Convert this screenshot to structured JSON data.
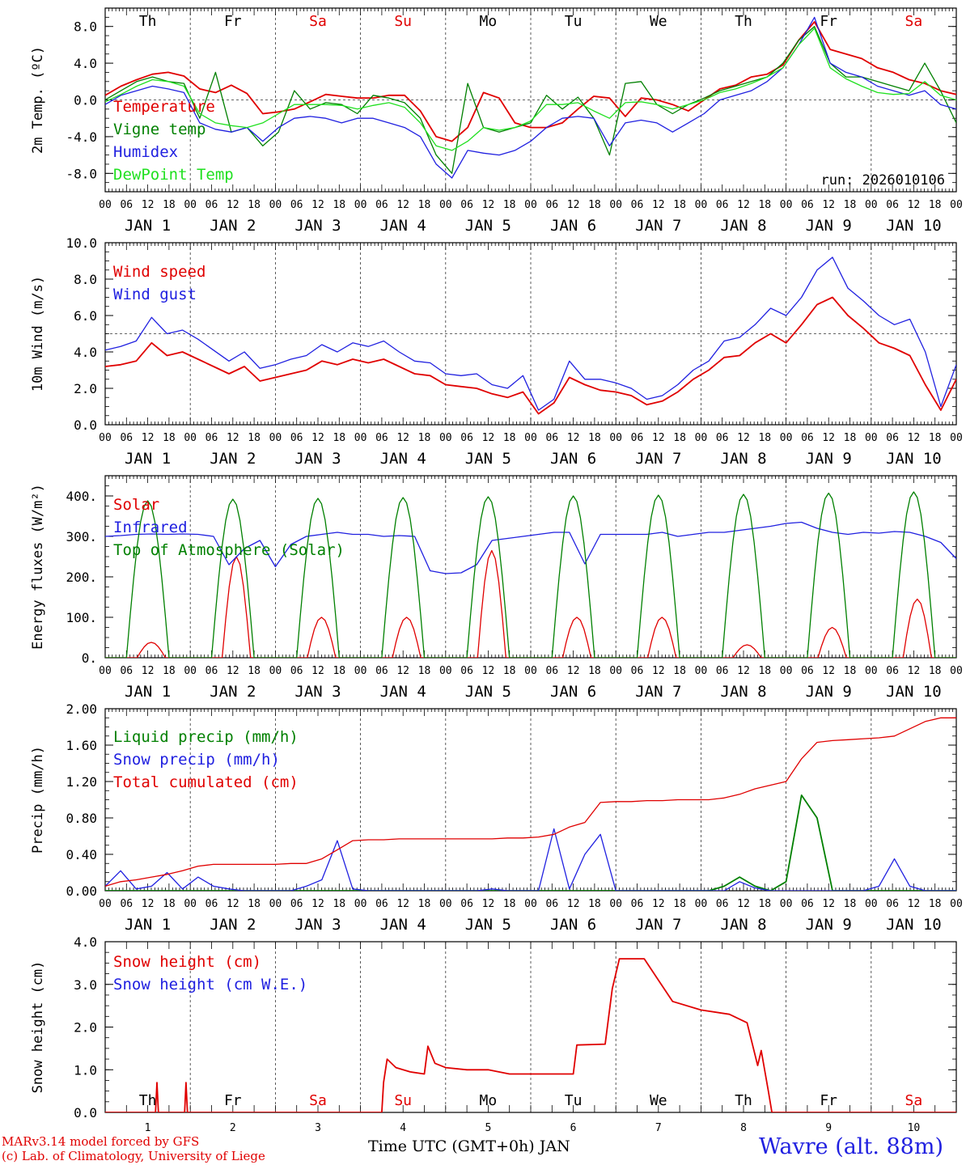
{
  "chart_data": [
    {
      "type": "line",
      "ylabel": "2m Temp. (ºC)",
      "ylim": [
        -10,
        10
      ],
      "yticks": [
        8,
        4,
        0,
        -4,
        -8
      ],
      "ytick_labels": [
        "8.0",
        "4.0",
        "0.0",
        "-4.0",
        "-8.0"
      ],
      "hline": 0,
      "run_label": "run: 2026010106",
      "weekday_labels": [
        "Th",
        "Fr",
        "Sa",
        "Su",
        "Mo",
        "Tu",
        "We",
        "Th",
        "Fr",
        "Sa"
      ],
      "series": [
        {
          "name": "Temperature",
          "color": "#e00000",
          "values": [
            0.5,
            1.5,
            2.2,
            2.8,
            3.0,
            2.6,
            1.2,
            0.8,
            1.6,
            0.7,
            -1.5,
            -1.3,
            -1.0,
            -0.2,
            0.6,
            0.4,
            0.2,
            0.2,
            0.5,
            0.5,
            -1.2,
            -4.0,
            -4.5,
            -3.0,
            0.8,
            0.2,
            -2.5,
            -3.0,
            -3.0,
            -2.5,
            -1.0,
            0.4,
            0.2,
            -1.8,
            0.2,
            0.0,
            -0.5,
            -1.2,
            0.0,
            1.2,
            1.6,
            2.5,
            2.8,
            3.8,
            6.5,
            8.5,
            5.5,
            5.0,
            4.5,
            3.5,
            3.0,
            2.2,
            1.8,
            1.0,
            0.6
          ]
        },
        {
          "name": "Vigne temp",
          "color": "#008000",
          "values": [
            0.0,
            1.0,
            2.0,
            2.5,
            2.0,
            1.8,
            -2.0,
            3.0,
            -3.5,
            -3.0,
            -5.0,
            -3.5,
            1.0,
            -1.0,
            -0.3,
            -0.5,
            -1.5,
            0.5,
            0.2,
            -0.3,
            -2.0,
            -6.0,
            -8.0,
            1.8,
            -3.0,
            -3.5,
            -3.0,
            -2.5,
            0.5,
            -1.0,
            0.3,
            -2.0,
            -6.0,
            1.8,
            2.0,
            -0.5,
            -1.5,
            -0.5,
            0.2,
            1.0,
            1.5,
            2.0,
            2.5,
            4.0,
            6.5,
            8.0,
            4.0,
            2.5,
            2.5,
            2.0,
            1.5,
            1.0,
            4.0,
            1.0,
            -2.5
          ]
        },
        {
          "name": "Humidex",
          "color": "#2020e0",
          "values": [
            -0.5,
            0.5,
            1.0,
            1.5,
            1.2,
            0.8,
            -2.5,
            -3.2,
            -3.5,
            -3.0,
            -4.5,
            -3.0,
            -2.0,
            -1.8,
            -2.0,
            -2.5,
            -2.0,
            -2.0,
            -2.5,
            -3.0,
            -4.0,
            -7.0,
            -8.5,
            -5.5,
            -5.8,
            -6.0,
            -5.5,
            -4.5,
            -3.0,
            -2.0,
            -1.8,
            -2.0,
            -5.0,
            -2.5,
            -2.2,
            -2.5,
            -3.5,
            -2.5,
            -1.5,
            0.0,
            0.5,
            1.0,
            2.0,
            3.5,
            6.0,
            9.0,
            4.0,
            3.0,
            2.5,
            1.5,
            1.0,
            0.5,
            1.0,
            -0.5,
            -1.0
          ]
        },
        {
          "name": "DewPoint Temp",
          "color": "#20e020",
          "values": [
            -0.2,
            0.6,
            1.5,
            2.2,
            2.0,
            1.5,
            -1.5,
            -2.5,
            -2.8,
            -3.0,
            -2.5,
            -1.5,
            -0.5,
            -0.5,
            -0.5,
            -0.6,
            -1.0,
            -0.6,
            -0.3,
            -0.8,
            -2.5,
            -5.0,
            -5.5,
            -4.5,
            -3.0,
            -3.3,
            -3.0,
            -2.3,
            -0.5,
            -0.5,
            -0.3,
            -1.2,
            -2.0,
            -0.3,
            -0.2,
            -0.5,
            -1.0,
            -0.5,
            0.0,
            0.8,
            1.2,
            1.8,
            2.5,
            3.5,
            6.0,
            7.8,
            3.5,
            2.3,
            1.5,
            0.8,
            0.6,
            0.7,
            2.0,
            0.5,
            0.0
          ]
        }
      ]
    },
    {
      "type": "line",
      "ylabel": "10m Wind (m/s)",
      "ylim": [
        0,
        10
      ],
      "yticks": [
        10,
        8,
        6,
        4,
        2,
        0
      ],
      "ytick_labels": [
        "10.0",
        "8.0",
        "6.0",
        "4.0",
        "2.0",
        "0.0"
      ],
      "hline": 5,
      "series": [
        {
          "name": "Wind speed",
          "color": "#e00000",
          "values": [
            3.2,
            3.3,
            3.5,
            4.5,
            3.8,
            4.0,
            3.6,
            3.2,
            2.8,
            3.2,
            2.4,
            2.6,
            2.8,
            3.0,
            3.5,
            3.3,
            3.6,
            3.4,
            3.6,
            3.2,
            2.8,
            2.7,
            2.2,
            2.1,
            2.0,
            1.7,
            1.5,
            1.8,
            0.6,
            1.2,
            2.6,
            2.2,
            1.9,
            1.8,
            1.6,
            1.1,
            1.3,
            1.8,
            2.5,
            3.0,
            3.7,
            3.8,
            4.5,
            5.0,
            4.5,
            5.5,
            6.6,
            7.0,
            6.0,
            5.3,
            4.5,
            4.2,
            3.8,
            2.2,
            0.8,
            2.5
          ]
        },
        {
          "name": "Wind gust",
          "color": "#2020e0",
          "values": [
            4.1,
            4.3,
            4.6,
            5.9,
            5.0,
            5.2,
            4.7,
            4.1,
            3.5,
            4.0,
            3.1,
            3.3,
            3.6,
            3.8,
            4.4,
            4.0,
            4.5,
            4.3,
            4.6,
            4.0,
            3.5,
            3.4,
            2.8,
            2.7,
            2.8,
            2.2,
            2.0,
            2.7,
            0.8,
            1.4,
            3.5,
            2.5,
            2.5,
            2.3,
            2.0,
            1.4,
            1.6,
            2.2,
            3.0,
            3.5,
            4.6,
            4.8,
            5.5,
            6.4,
            6.0,
            7.0,
            8.5,
            9.2,
            7.5,
            6.8,
            6.0,
            5.5,
            5.8,
            4.0,
            1.0,
            3.3
          ]
        }
      ]
    },
    {
      "type": "line",
      "ylabel": "Energy fluxes (W/m²)",
      "ylim": [
        0,
        450
      ],
      "yticks": [
        400,
        300,
        200,
        100,
        0
      ],
      "ytick_labels": [
        "400.",
        "300.",
        "200.",
        "100.",
        "0."
      ],
      "series": [
        {
          "name": "Solar",
          "color": "#e00000",
          "peak_hour": 13,
          "daily_peaks": [
            38,
            250,
            100,
            100,
            265,
            100,
            100,
            32,
            75,
            145
          ]
        },
        {
          "name": "Infrared",
          "color": "#2020e0",
          "values": [
            300,
            302,
            305,
            306,
            305,
            306,
            305,
            300,
            230,
            270,
            290,
            225,
            280,
            300,
            305,
            310,
            305,
            305,
            300,
            302,
            300,
            215,
            208,
            210,
            230,
            290,
            295,
            300,
            305,
            310,
            310,
            232,
            305,
            305,
            305,
            305,
            310,
            300,
            305,
            310,
            310,
            315,
            320,
            325,
            332,
            335,
            320,
            310,
            305,
            310,
            308,
            312,
            310,
            300,
            285,
            245
          ]
        },
        {
          "name": "Top of Atmosphere (Solar)",
          "color": "#008000",
          "peak_hour": 12,
          "daily_peaks": [
            388,
            392,
            394,
            396,
            398,
            400,
            402,
            404,
            407,
            410
          ]
        }
      ]
    },
    {
      "type": "line",
      "ylabel": "Precip (mm/h)",
      "ylim": [
        0,
        2
      ],
      "yticks": [
        2.0,
        1.6,
        1.2,
        0.8,
        0.4,
        0.0
      ],
      "ytick_labels": [
        "2.00",
        "1.60",
        "1.20",
        "0.80",
        "0.40",
        "0.00"
      ],
      "series": [
        {
          "name": "Liquid precip (mm/h)",
          "color": "#008000",
          "values": [
            0,
            0,
            0,
            0,
            0,
            0,
            0,
            0,
            0,
            0,
            0,
            0,
            0,
            0,
            0,
            0,
            0,
            0,
            0,
            0,
            0,
            0,
            0,
            0,
            0,
            0,
            0,
            0,
            0,
            0,
            0,
            0,
            0,
            0,
            0,
            0,
            0,
            0,
            0,
            0,
            0.05,
            0.15,
            0.05,
            0,
            0.1,
            1.05,
            0.8,
            0,
            0,
            0,
            0,
            0,
            0,
            0,
            0,
            0
          ]
        },
        {
          "name": "Snow precip (mm/h)",
          "color": "#2020e0",
          "values": [
            0.05,
            0.22,
            0.02,
            0.05,
            0.2,
            0.02,
            0.15,
            0.05,
            0.02,
            0,
            0,
            0,
            0,
            0.05,
            0.12,
            0.55,
            0.02,
            0,
            0,
            0,
            0,
            0,
            0,
            0,
            0,
            0.02,
            0,
            0,
            0,
            0.68,
            0.02,
            0.4,
            0.62,
            0,
            0,
            0,
            0,
            0,
            0,
            0,
            0,
            0.1,
            0.03,
            0,
            0,
            0,
            0,
            0,
            0,
            0,
            0.05,
            0.35,
            0.05,
            0,
            0,
            0
          ]
        },
        {
          "name": "Total cumulated (cm)",
          "color": "#e00000",
          "values": [
            0.05,
            0.1,
            0.12,
            0.15,
            0.18,
            0.22,
            0.27,
            0.29,
            0.29,
            0.29,
            0.29,
            0.29,
            0.3,
            0.3,
            0.35,
            0.45,
            0.55,
            0.56,
            0.56,
            0.57,
            0.57,
            0.57,
            0.57,
            0.57,
            0.57,
            0.57,
            0.58,
            0.58,
            0.59,
            0.62,
            0.7,
            0.75,
            0.97,
            0.98,
            0.98,
            0.99,
            0.99,
            1.0,
            1.0,
            1.0,
            1.02,
            1.06,
            1.12,
            1.16,
            1.2,
            1.45,
            1.63,
            1.65,
            1.66,
            1.67,
            1.68,
            1.7,
            1.78,
            1.86,
            1.9,
            1.9
          ]
        }
      ]
    },
    {
      "type": "line",
      "ylabel": "Snow height (cm)",
      "ylim": [
        0,
        4
      ],
      "yticks": [
        4.0,
        3.0,
        2.0,
        1.0,
        0.0
      ],
      "ytick_labels": [
        "4.0",
        "3.0",
        "2.0",
        "1.0",
        "0.0"
      ],
      "weekday_labels": [
        "Th",
        "Fr",
        "Sa",
        "Su",
        "Mo",
        "Tu",
        "We",
        "Th",
        "Fr",
        "Sa"
      ],
      "date_labels": [
        "1",
        "2",
        "3",
        "4",
        "5",
        "6",
        "7",
        "8",
        "9",
        "10"
      ],
      "series": [
        {
          "name": "Snow height (cm)",
          "color": "#e00000",
          "points": [
            [
              0,
              0
            ],
            [
              14.2,
              0
            ],
            [
              14.6,
              0.7
            ],
            [
              15.0,
              0
            ],
            [
              22.4,
              0
            ],
            [
              22.8,
              0.7
            ],
            [
              23.2,
              0
            ],
            [
              78.0,
              0
            ],
            [
              78.5,
              0.7
            ],
            [
              79.5,
              1.25
            ],
            [
              82,
              1.05
            ],
            [
              86,
              0.95
            ],
            [
              90,
              0.9
            ],
            [
              91,
              1.55
            ],
            [
              93,
              1.15
            ],
            [
              96,
              1.05
            ],
            [
              102,
              1.0
            ],
            [
              108,
              1.0
            ],
            [
              114,
              0.9
            ],
            [
              132,
              0.9
            ],
            [
              133,
              1.58
            ],
            [
              141,
              1.6
            ],
            [
              142,
              2.25
            ],
            [
              143,
              2.9
            ],
            [
              145,
              3.6
            ],
            [
              152,
              3.6
            ],
            [
              156,
              3.1
            ],
            [
              160,
              2.6
            ],
            [
              168,
              2.4
            ],
            [
              176,
              2.3
            ],
            [
              181,
              2.1
            ],
            [
              184,
              1.1
            ],
            [
              185,
              1.45
            ],
            [
              187,
              0.5
            ],
            [
              188,
              0
            ],
            [
              240,
              0
            ]
          ]
        },
        {
          "name": "Snow height (cm W.E.)",
          "color": "#2020e0",
          "points": []
        }
      ]
    }
  ],
  "x_axis": {
    "hour_labels": [
      "00",
      "06",
      "12",
      "18"
    ],
    "date_labels": [
      "JAN  1",
      "JAN  2",
      "JAN  3",
      "JAN  4",
      "JAN  5",
      "JAN  6",
      "JAN  7",
      "JAN  8",
      "JAN  9",
      "JAN 10"
    ],
    "end_label": "00"
  },
  "footer": {
    "credit_line1": "MARv3.14 model forced by GFS",
    "credit_line2": "(c) Lab. of Climatology, University of Liege",
    "x_title": "Time UTC (GMT+0h) JAN",
    "station": "Wavre (alt. 88m)"
  }
}
